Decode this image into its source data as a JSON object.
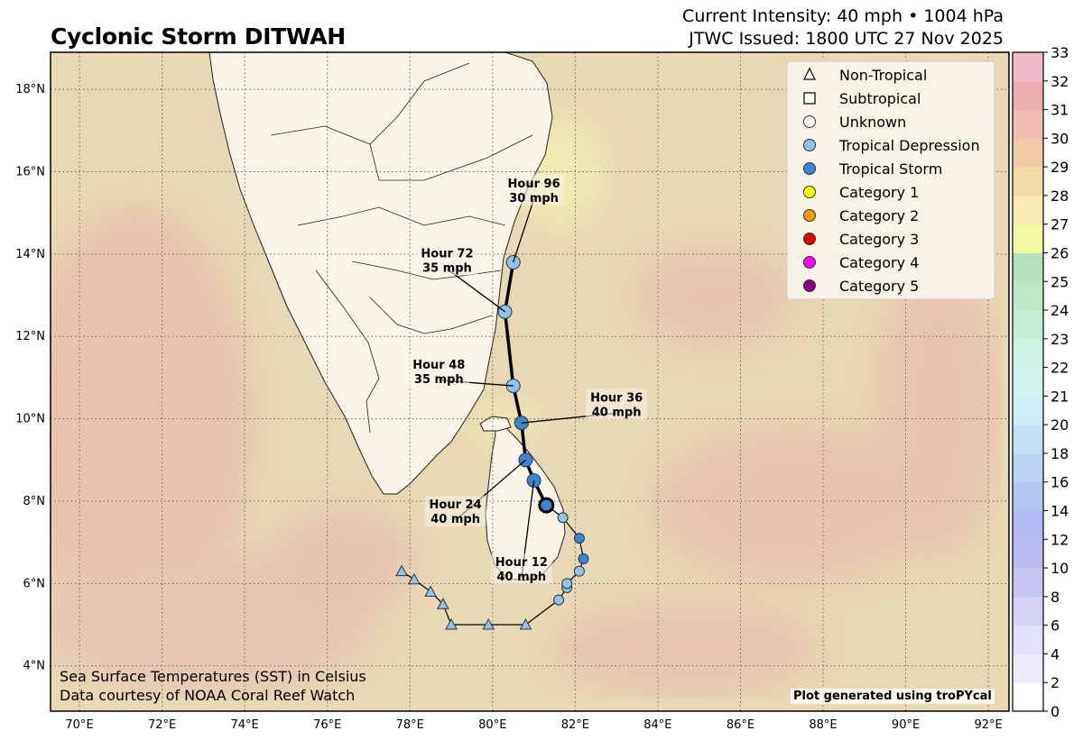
{
  "header": {
    "title": "Cyclonic Storm DITWAH",
    "intensity_line1": "Current Intensity: 40 mph • 1004 hPa",
    "intensity_line2": "JTWC Issued: 1800 UTC 27 Nov 2025"
  },
  "map": {
    "lon_range": [
      69.3,
      92.5
    ],
    "lat_range": [
      2.9,
      18.9
    ],
    "lon_ticks": [
      "70°E",
      "72°E",
      "74°E",
      "76°E",
      "78°E",
      "80°E",
      "82°E",
      "84°E",
      "86°E",
      "88°E",
      "90°E",
      "92°E"
    ],
    "lat_ticks": [
      "4°N",
      "6°N",
      "8°N",
      "10°N",
      "12°N",
      "14°N",
      "16°N",
      "18°N"
    ],
    "grid": "dotted",
    "land_color": "#faf3e8",
    "ocean_color": "#e9d8b4"
  },
  "track": {
    "forecast_points": [
      {
        "lon": 81.3,
        "lat": 7.9,
        "category": "Tropical Storm",
        "current": true
      },
      {
        "lon": 81.0,
        "lat": 8.5,
        "category": "Tropical Storm"
      },
      {
        "lon": 80.8,
        "lat": 9.0,
        "category": "Tropical Storm"
      },
      {
        "lon": 80.7,
        "lat": 9.9,
        "category": "Tropical Storm"
      },
      {
        "lon": 80.5,
        "lat": 10.8,
        "category": "Tropical Depression"
      },
      {
        "lon": 80.3,
        "lat": 12.6,
        "category": "Tropical Depression"
      },
      {
        "lon": 80.5,
        "lat": 13.8,
        "category": "Tropical Depression"
      }
    ],
    "past_points": [
      {
        "lon": 77.8,
        "lat": 6.3,
        "category": "Non-Tropical"
      },
      {
        "lon": 78.1,
        "lat": 6.1,
        "category": "Non-Tropical"
      },
      {
        "lon": 78.5,
        "lat": 5.8,
        "category": "Non-Tropical"
      },
      {
        "lon": 78.8,
        "lat": 5.5,
        "category": "Non-Tropical"
      },
      {
        "lon": 79.0,
        "lat": 5.0,
        "category": "Non-Tropical"
      },
      {
        "lon": 79.9,
        "lat": 5.0,
        "category": "Non-Tropical"
      },
      {
        "lon": 80.8,
        "lat": 5.0,
        "category": "Non-Tropical"
      },
      {
        "lon": 81.6,
        "lat": 5.6,
        "category": "Tropical Depression"
      },
      {
        "lon": 81.8,
        "lat": 5.9,
        "category": "Tropical Depression"
      },
      {
        "lon": 81.8,
        "lat": 6.0,
        "category": "Tropical Depression"
      },
      {
        "lon": 82.1,
        "lat": 6.3,
        "category": "Tropical Depression"
      },
      {
        "lon": 82.2,
        "lat": 6.6,
        "category": "Tropical Storm"
      },
      {
        "lon": 82.1,
        "lat": 7.1,
        "category": "Tropical Storm"
      },
      {
        "lon": 81.7,
        "lat": 7.6,
        "category": "Tropical Depression"
      }
    ],
    "annotations": [
      {
        "hour": "Hour 12",
        "wind": "40 mph",
        "lon": 81.0,
        "lat": 8.5,
        "label_lon": 80.7,
        "label_lat": 6.4
      },
      {
        "hour": "Hour 24",
        "wind": "40 mph",
        "lon": 80.8,
        "lat": 9.0,
        "label_lon": 79.1,
        "label_lat": 7.8
      },
      {
        "hour": "Hour 36",
        "wind": "40 mph",
        "lon": 80.7,
        "lat": 9.9,
        "label_lon": 83.0,
        "label_lat": 10.4
      },
      {
        "hour": "Hour 48",
        "wind": "35 mph",
        "lon": 80.5,
        "lat": 10.8,
        "label_lon": 78.7,
        "label_lat": 11.2
      },
      {
        "hour": "Hour 72",
        "wind": "35 mph",
        "lon": 80.3,
        "lat": 12.6,
        "label_lon": 78.9,
        "label_lat": 13.9
      },
      {
        "hour": "Hour 96",
        "wind": "30 mph",
        "lon": 80.5,
        "lat": 13.8,
        "label_lon": 81.0,
        "label_lat": 15.6
      }
    ]
  },
  "legend": {
    "placement": "top-right",
    "items": [
      {
        "label": "Non-Tropical",
        "marker": "triangle",
        "color": "#ffffff"
      },
      {
        "label": "Subtropical",
        "marker": "square",
        "color": "#ffffff"
      },
      {
        "label": "Unknown",
        "marker": "circle",
        "color": "#ffffff"
      },
      {
        "label": "Tropical Depression",
        "marker": "circle",
        "color": "#8fc3f0"
      },
      {
        "label": "Tropical Storm",
        "marker": "circle",
        "color": "#3a86d6"
      },
      {
        "label": "Category 1",
        "marker": "circle",
        "color": "#ffff00"
      },
      {
        "label": "Category 2",
        "marker": "circle",
        "color": "#ff9900"
      },
      {
        "label": "Category 3",
        "marker": "circle",
        "color": "#e00000"
      },
      {
        "label": "Category 4",
        "marker": "circle",
        "color": "#ff00ff"
      },
      {
        "label": "Category 5",
        "marker": "circle",
        "color": "#8b008b"
      }
    ]
  },
  "colorbar": {
    "ticks": [
      "0",
      "2",
      "4",
      "6",
      "8",
      "10",
      "12",
      "14",
      "16",
      "18",
      "20",
      "21",
      "22",
      "23",
      "24",
      "25",
      "26",
      "27",
      "28",
      "29",
      "30",
      "31",
      "32",
      "33"
    ],
    "colors": [
      "#ffffff",
      "#ececfb",
      "#e0e0f8",
      "#d3d3f6",
      "#c6c6f3",
      "#b9bbf0",
      "#b2b9f0",
      "#b4c4f0",
      "#bcd3f1",
      "#c4e0f2",
      "#cdeef5",
      "#d1f3ee",
      "#cbf2e2",
      "#c4eed6",
      "#bde9c9",
      "#b4e2bc",
      "#f5f9a4",
      "#f8ecb2",
      "#f2dca8",
      "#f2cca8",
      "#f1bcb2",
      "#ebadb0",
      "#f0bcc9",
      "#f6d7ec"
    ]
  },
  "footer": {
    "note_line1": "Sea Surface Temperatures (SST) in Celsius",
    "note_line2": "Data courtesy of NOAA Coral Reef Watch",
    "credit": "Plot generated using troPYcal"
  }
}
